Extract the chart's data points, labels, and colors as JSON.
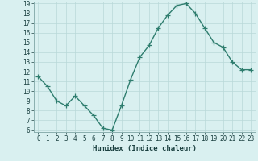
{
  "x": [
    0,
    1,
    2,
    3,
    4,
    5,
    6,
    7,
    8,
    9,
    10,
    11,
    12,
    13,
    14,
    15,
    16,
    17,
    18,
    19,
    20,
    21,
    22,
    23
  ],
  "y": [
    11.5,
    10.5,
    9.0,
    8.5,
    9.5,
    8.5,
    7.5,
    6.2,
    6.0,
    8.5,
    11.2,
    13.5,
    14.7,
    16.5,
    17.8,
    18.8,
    19.0,
    18.0,
    16.5,
    15.0,
    14.5,
    13.0,
    12.2,
    12.2
  ],
  "line_color": "#2E7D6E",
  "bg_color": "#d9f0f0",
  "grid_color": "#b8d8d8",
  "xlabel": "Humidex (Indice chaleur)",
  "ylim_min": 6,
  "ylim_max": 19,
  "xlim_min": -0.5,
  "xlim_max": 23.5,
  "yticks": [
    6,
    7,
    8,
    9,
    10,
    11,
    12,
    13,
    14,
    15,
    16,
    17,
    18,
    19
  ],
  "xticks": [
    0,
    1,
    2,
    3,
    4,
    5,
    6,
    7,
    8,
    9,
    10,
    11,
    12,
    13,
    14,
    15,
    16,
    17,
    18,
    19,
    20,
    21,
    22,
    23
  ],
  "xtick_labels": [
    "0",
    "1",
    "2",
    "3",
    "4",
    "5",
    "6",
    "7",
    "8",
    "9",
    "10",
    "11",
    "12",
    "13",
    "14",
    "15",
    "16",
    "17",
    "18",
    "19",
    "20",
    "21",
    "22",
    "23"
  ],
  "marker": "+",
  "markersize": 4,
  "linewidth": 1.0,
  "xlabel_fontsize": 6.5,
  "tick_fontsize": 5.5
}
